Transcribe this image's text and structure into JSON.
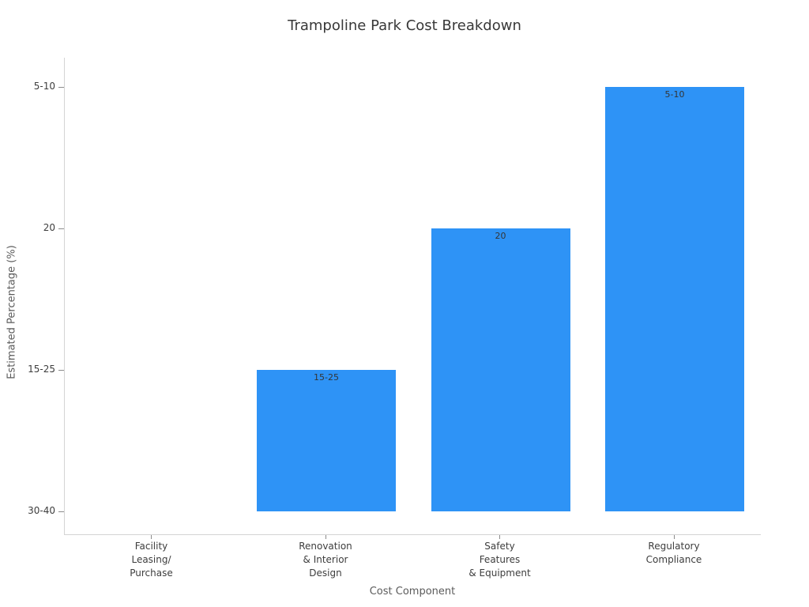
{
  "chart_data": {
    "type": "bar",
    "title": "Trampoline Park Cost Breakdown",
    "xlabel": "Cost Component",
    "ylabel": "Estimated Percentage (%)",
    "categories": [
      "Facility\nLeasing/\nPurchase",
      "Renovation\n& Interior\nDesign",
      "Safety\nFeatures\n& Equipment",
      "Regulatory\nCompliance"
    ],
    "values": [
      "30-40",
      "15-25",
      "20",
      "5-10"
    ],
    "visible_bar_value_labels": [
      "15-25",
      "20",
      "5-10"
    ],
    "y_axis_categories_bottom_to_top": [
      "30-40",
      "15-25",
      "20",
      "5-10"
    ],
    "grid": false,
    "legend": null,
    "colors": {
      "bar": "#2E93F6",
      "spine": "#d4d4d4",
      "tick_mark": "#8c8c8c",
      "tick_text": "#3d3d3d",
      "axis_label_text": "#5b5b5b",
      "title_text": "#383838"
    }
  }
}
